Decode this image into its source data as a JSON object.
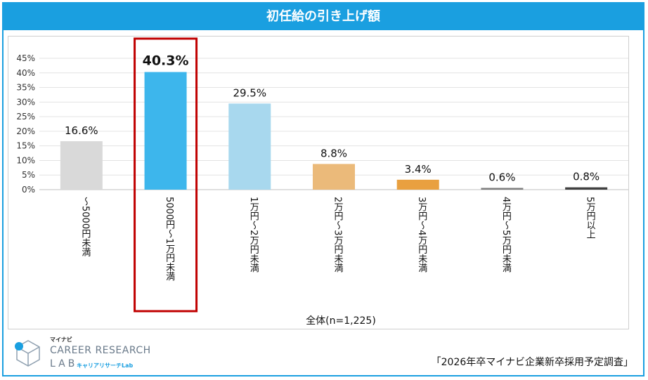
{
  "chart_data": {
    "type": "bar",
    "title": "初任給の引き上げ額",
    "xlabel": "全体(n=1,225)",
    "ylabel": "",
    "ylim": [
      0,
      45
    ],
    "yticks": [
      "0%",
      "5%",
      "10%",
      "15%",
      "20%",
      "25%",
      "30%",
      "35%",
      "40%",
      "45%"
    ],
    "grid": true,
    "categories": [
      "～5000円未満",
      "5000円～1万円未満",
      "1万円～2万円未満",
      "2万円～3万円未満",
      "3万円～4万円未満",
      "4万円～5万円未満",
      "5万円以上"
    ],
    "values": [
      16.6,
      40.3,
      29.5,
      8.8,
      3.4,
      0.6,
      0.8
    ],
    "value_labels": [
      "16.6%",
      "40.3%",
      "29.5%",
      "8.8%",
      "3.4%",
      "0.6%",
      "0.8%"
    ],
    "colors": [
      "#d9d9d9",
      "#3db6ec",
      "#a8d8ee",
      "#ebba7a",
      "#e9a040",
      "#7f7f7f",
      "#404040"
    ],
    "highlight_index": 1,
    "highlight_color": "#c00000"
  },
  "footer": {
    "brand": "マイナビ",
    "logo_line1": "CAREER RESEARCH",
    "logo_line2": "LAB",
    "logo_sub": "キャリアリサーチLab",
    "source": "「2026年卒マイナビ企業新卒採用予定調査」"
  },
  "colors": {
    "accent": "#1a9fe0"
  }
}
